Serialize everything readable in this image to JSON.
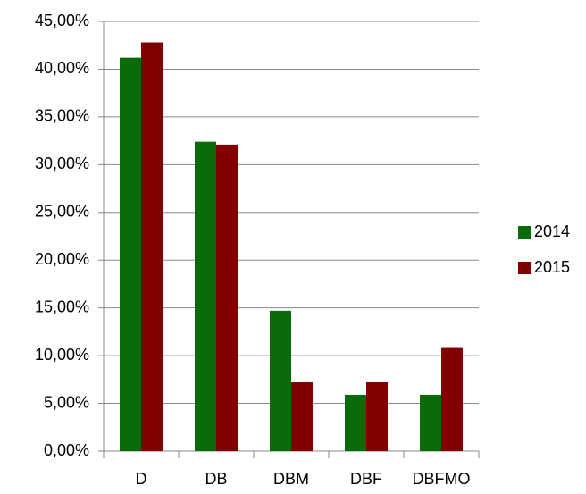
{
  "chart_data": {
    "type": "bar",
    "categories": [
      "D",
      "DB",
      "DBM",
      "DBF",
      "DBFMO"
    ],
    "series": [
      {
        "name": "2014",
        "color": "#0b6b0b",
        "values": [
          41.2,
          32.4,
          14.7,
          5.9,
          5.9
        ]
      },
      {
        "name": "2015",
        "color": "#800000",
        "values": [
          42.8,
          32.1,
          7.2,
          7.2,
          10.8
        ]
      }
    ],
    "ylim": [
      0,
      45
    ],
    "yticks": [
      {
        "value": 0,
        "label": "0,00%"
      },
      {
        "value": 5,
        "label": "5,00%"
      },
      {
        "value": 10,
        "label": "10,00%"
      },
      {
        "value": 15,
        "label": "15,00%"
      },
      {
        "value": 20,
        "label": "20,00%"
      },
      {
        "value": 25,
        "label": "25,00%"
      },
      {
        "value": 30,
        "label": "30,00%"
      },
      {
        "value": 35,
        "label": "35,00%"
      },
      {
        "value": 40,
        "label": "40,00%"
      },
      {
        "value": 45,
        "label": "45,00%"
      }
    ],
    "grid": true,
    "legend": "right"
  }
}
